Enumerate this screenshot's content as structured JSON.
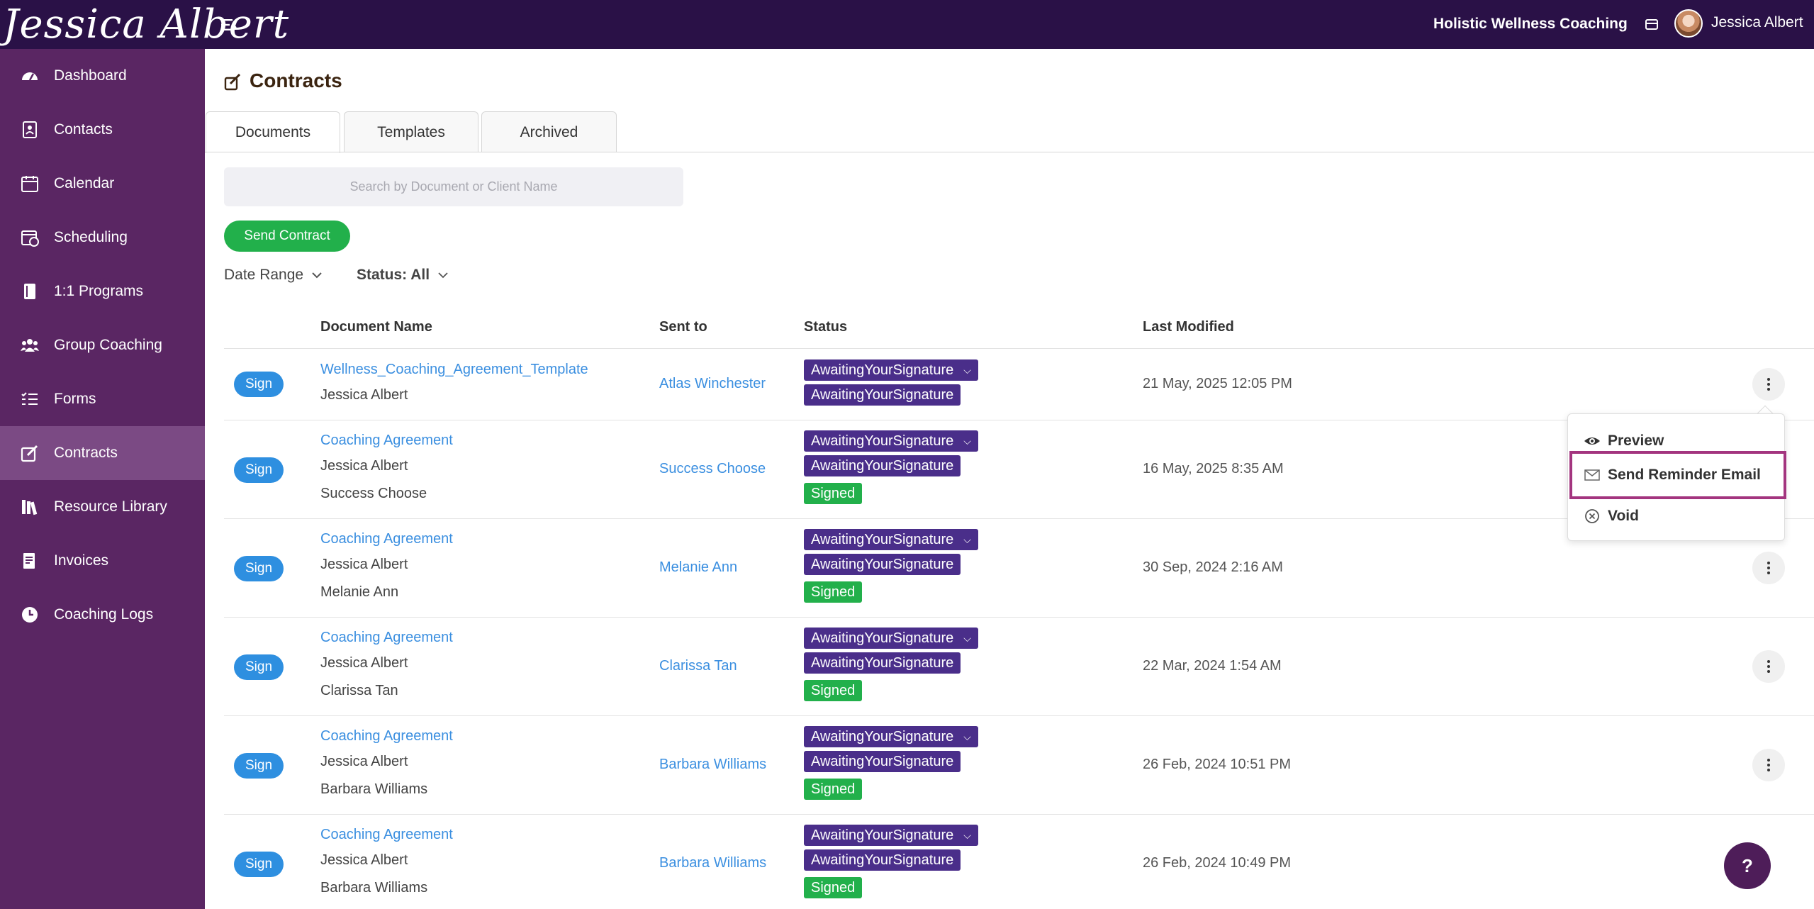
{
  "topbar": {
    "logo_text": "Jessica Albert",
    "business_name": "Holistic Wellness Coaching",
    "user_name": "Jessica Albert"
  },
  "sidebar": {
    "items": [
      {
        "label": "Dashboard",
        "icon": "dashboard-icon"
      },
      {
        "label": "Contacts",
        "icon": "contacts-icon"
      },
      {
        "label": "Calendar",
        "icon": "calendar-icon"
      },
      {
        "label": "Scheduling",
        "icon": "scheduling-icon"
      },
      {
        "label": "1:1 Programs",
        "icon": "book-icon"
      },
      {
        "label": "Group Coaching",
        "icon": "group-icon"
      },
      {
        "label": "Forms",
        "icon": "forms-icon"
      },
      {
        "label": "Contracts",
        "icon": "contract-icon",
        "active": true
      },
      {
        "label": "Resource Library",
        "icon": "library-icon"
      },
      {
        "label": "Invoices",
        "icon": "invoice-icon"
      },
      {
        "label": "Coaching Logs",
        "icon": "clock-icon"
      }
    ]
  },
  "page": {
    "title": "Contracts",
    "tabs": [
      "Documents",
      "Templates",
      "Archived"
    ],
    "active_tab": "Documents",
    "search_placeholder": "Search by Document or Client Name",
    "send_button": "Send Contract",
    "filter_date": "Date Range",
    "filter_status": "Status: All"
  },
  "table": {
    "headers": {
      "document": "Document Name",
      "sent_to": "Sent to",
      "status": "Status",
      "modified": "Last Modified"
    },
    "sign_label": "Sign",
    "rows": [
      {
        "doc": "Wellness_Coaching_Agreement_Template",
        "sub": [
          "Jessica Albert"
        ],
        "sent_to": "Atlas Winchester",
        "statuses": [
          "AwaitingYourSignature",
          "AwaitingYourSignature"
        ],
        "modified": "21 May, 2025 12:05 PM"
      },
      {
        "doc": "Coaching Agreement",
        "sub": [
          "Jessica Albert",
          "Success Choose"
        ],
        "sent_to": "Success Choose",
        "statuses": [
          "AwaitingYourSignature",
          "AwaitingYourSignature",
          "Signed"
        ],
        "modified": "16 May, 2025 8:35 AM"
      },
      {
        "doc": "Coaching Agreement",
        "sub": [
          "Jessica Albert",
          "Melanie Ann"
        ],
        "sent_to": "Melanie Ann",
        "statuses": [
          "AwaitingYourSignature",
          "AwaitingYourSignature",
          "Signed"
        ],
        "modified": "30 Sep, 2024 2:16 AM"
      },
      {
        "doc": "Coaching Agreement",
        "sub": [
          "Jessica Albert",
          "Clarissa Tan"
        ],
        "sent_to": "Clarissa Tan",
        "statuses": [
          "AwaitingYourSignature",
          "AwaitingYourSignature",
          "Signed"
        ],
        "modified": "22 Mar, 2024 1:54 AM"
      },
      {
        "doc": "Coaching Agreement",
        "sub": [
          "Jessica Albert",
          "Barbara Williams"
        ],
        "sent_to": "Barbara Williams",
        "statuses": [
          "AwaitingYourSignature",
          "AwaitingYourSignature",
          "Signed"
        ],
        "modified": "26 Feb, 2024 10:51 PM"
      },
      {
        "doc": "Coaching Agreement",
        "sub": [
          "Jessica Albert",
          "Barbara Williams"
        ],
        "sent_to": "Barbara Williams",
        "statuses": [
          "AwaitingYourSignature",
          "AwaitingYourSignature",
          "Signed"
        ],
        "modified": "26 Feb, 2024 10:49 PM"
      }
    ]
  },
  "menu": {
    "items": [
      "Preview",
      "Send Reminder Email",
      "Void"
    ]
  },
  "help_label": "?",
  "colors": {
    "topbar": "#2a1147",
    "sidebar": "#5a2663",
    "sidebar_active": "#7b4a84",
    "await_badge": "#4a2e8a",
    "signed_badge": "#22b04b",
    "link": "#3b8fe0",
    "highlight": "#a3357f"
  }
}
